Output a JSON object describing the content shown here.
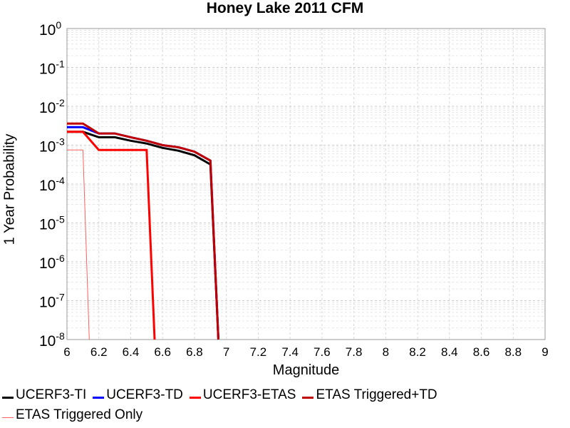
{
  "chart_data": {
    "type": "line",
    "title": "Honey Lake 2011 CFM",
    "xlabel": "Magnitude",
    "ylabel": "1 Year Probability",
    "xlim": [
      6,
      9
    ],
    "ylim": [
      1e-08,
      1
    ],
    "yscale": "log",
    "grid": true,
    "legend_position": "bottom",
    "x_ticks": [
      "6",
      "6.2",
      "6.4",
      "6.6",
      "6.8",
      "7",
      "7.2",
      "7.4",
      "7.6",
      "7.8",
      "8",
      "8.2",
      "8.4",
      "8.6",
      "8.8",
      "9"
    ],
    "y_ticks": [
      {
        "base": "10",
        "exp": "0"
      },
      {
        "base": "10",
        "exp": "-1"
      },
      {
        "base": "10",
        "exp": "-2"
      },
      {
        "base": "10",
        "exp": "-3"
      },
      {
        "base": "10",
        "exp": "-4"
      },
      {
        "base": "10",
        "exp": "-5"
      },
      {
        "base": "10",
        "exp": "-6"
      },
      {
        "base": "10",
        "exp": "-7"
      },
      {
        "base": "10",
        "exp": "-8"
      }
    ],
    "series": [
      {
        "name": "UCERF3-TI",
        "color": "#000000",
        "width": 3,
        "x": [
          6.0,
          6.1,
          6.2,
          6.3,
          6.4,
          6.5,
          6.6,
          6.7,
          6.8,
          6.9,
          6.95
        ],
        "y": [
          0.0022,
          0.0022,
          0.0016,
          0.0016,
          0.0013,
          0.0011,
          0.00085,
          0.00072,
          0.00055,
          0.00032,
          1e-08
        ]
      },
      {
        "name": "UCERF3-TD",
        "color": "#0000ff",
        "width": 3,
        "x": [
          6.0,
          6.1,
          6.2,
          6.3,
          6.4,
          6.5,
          6.6,
          6.7,
          6.8,
          6.9,
          6.95
        ],
        "y": [
          0.0029,
          0.0029,
          0.002,
          0.002,
          0.0016,
          0.0013,
          0.001,
          0.00088,
          0.00068,
          0.0004,
          1e-08
        ]
      },
      {
        "name": "UCERF3-ETAS",
        "color": "#ff0000",
        "width": 3,
        "x": [
          6.0,
          6.1,
          6.2,
          6.3,
          6.4,
          6.5,
          6.55
        ],
        "y": [
          0.0022,
          0.0022,
          0.00075,
          0.00075,
          0.00075,
          0.00075,
          1e-08
        ]
      },
      {
        "name": "ETAS Triggered+TD",
        "color": "#c00000",
        "width": 3,
        "x": [
          6.0,
          6.1,
          6.2,
          6.3,
          6.4,
          6.5,
          6.6,
          6.7,
          6.8,
          6.9,
          6.95
        ],
        "y": [
          0.0036,
          0.0036,
          0.002,
          0.002,
          0.0016,
          0.0013,
          0.001,
          0.00088,
          0.00068,
          0.0004,
          1e-08
        ]
      },
      {
        "name": "ETAS Triggered Only",
        "color": "#ff6060",
        "width": 1,
        "x": [
          6.0,
          6.1,
          6.14
        ],
        "y": [
          0.00075,
          0.00075,
          1e-08
        ]
      }
    ]
  }
}
